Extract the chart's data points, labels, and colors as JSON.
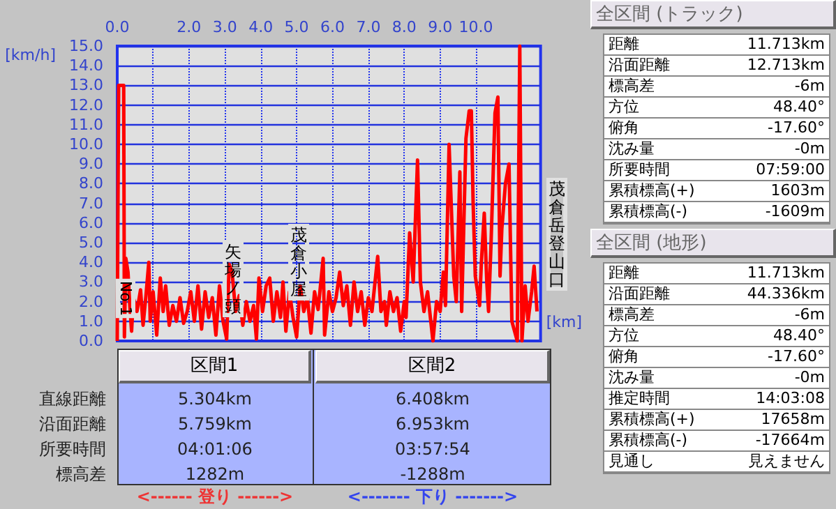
{
  "chart_data": [
    {
      "type": "line",
      "xlabel": "[km]",
      "ylabel": "[km/h]",
      "color": "#ff0000",
      "grid": true,
      "x": [
        0,
        0.02,
        0.04,
        0.18,
        0.2,
        0.24,
        0.3,
        0.35,
        0.4,
        0.45,
        0.55,
        0.65,
        0.72,
        0.8,
        0.88,
        0.92,
        1.0,
        1.1,
        1.2,
        1.28,
        1.35,
        1.45,
        1.55,
        1.65,
        1.75,
        1.85,
        1.95,
        2.05,
        2.15,
        2.25,
        2.35,
        2.45,
        2.55,
        2.65,
        2.75,
        2.85,
        2.95,
        3.05,
        3.12,
        3.2,
        3.3,
        3.4,
        3.5,
        3.6,
        3.7,
        3.8,
        3.88,
        3.95,
        4.05,
        4.15,
        4.25,
        4.35,
        4.45,
        4.55,
        4.62,
        4.7,
        4.8,
        4.9,
        5.0,
        5.1,
        5.2,
        5.3,
        5.4,
        5.5,
        5.6,
        5.74,
        5.78,
        5.9,
        6.0,
        6.1,
        6.2,
        6.3,
        6.4,
        6.5,
        6.6,
        6.7,
        6.8,
        6.9,
        7.0,
        7.1,
        7.26,
        7.35,
        7.45,
        7.5,
        7.6,
        7.7,
        7.8,
        7.9,
        8.0,
        8.05,
        8.15,
        8.25,
        8.37,
        8.45,
        8.55,
        8.65,
        8.8,
        8.9,
        9.0,
        9.09,
        9.15,
        9.25,
        9.38,
        9.45,
        9.55,
        9.6,
        9.72,
        9.81,
        9.87,
        9.92,
        9.98,
        10.1,
        10.15,
        10.23,
        10.3,
        10.35,
        10.42,
        10.48,
        10.53,
        10.61,
        10.67,
        10.72,
        10.82,
        10.92,
        11.0,
        11.15,
        11.22,
        11.28,
        11.37,
        11.45,
        11.55,
        11.62,
        11.7
      ],
      "values": [
        0,
        6.8,
        13.0,
        13.0,
        0.2,
        4.2,
        3.5,
        1.8,
        0.5,
        2.2,
        1.5,
        2.6,
        0.8,
        2.3,
        4.0,
        1.0,
        2.5,
        0.3,
        3.2,
        1.5,
        2.8,
        0.8,
        1.8,
        1.0,
        2.2,
        0.9,
        1.5,
        2.5,
        1.0,
        2.8,
        0.6,
        2.5,
        1.2,
        2.2,
        0.3,
        2.8,
        1.0,
        0.1,
        3.9,
        3.5,
        1.5,
        2.3,
        0.8,
        2.0,
        1.0,
        1.8,
        0.1,
        3.2,
        1.5,
        2.8,
        3.2,
        1.0,
        2.5,
        1.2,
        3.0,
        0.5,
        2.5,
        1.2,
        0.2,
        2.8,
        1.5,
        2.2,
        0.4,
        2.5,
        1.6,
        4.2,
        0.3,
        2.5,
        1.5,
        2.2,
        3.5,
        1.8,
        2.8,
        0.8,
        3.0,
        1.5,
        2.5,
        0.8,
        2.2,
        1.5,
        4.3,
        1.5,
        2.0,
        0.8,
        2.5,
        1.5,
        2.2,
        0.5,
        2.0,
        1.2,
        5.5,
        3.0,
        9.2,
        3.0,
        1.5,
        2.5,
        0.0,
        2.0,
        1.5,
        3.5,
        1.8,
        10.0,
        3.3,
        2.0,
        8.6,
        1.5,
        10.3,
        11.7,
        11.7,
        7.0,
        3.3,
        1.8,
        4.0,
        6.5,
        3.0,
        1.5,
        5.0,
        8.6,
        11.6,
        12.4,
        3.3,
        5.7,
        8.0,
        9.0,
        1.0,
        0.0,
        15.0,
        0.0,
        2.8,
        1.0,
        2.5,
        3.8,
        1.5
      ],
      "xlim": [
        0,
        11.8
      ],
      "xticks": [
        {
          "value": 0,
          "label": "0.0"
        },
        {
          "value": 1,
          "label": null
        },
        {
          "value": 2,
          "label": "2.0"
        },
        {
          "value": 3,
          "label": "3.0"
        },
        {
          "value": 4,
          "label": "4.0"
        },
        {
          "value": 5,
          "label": "5.0"
        },
        {
          "value": 6,
          "label": "6.0"
        },
        {
          "value": 7,
          "label": "7.0"
        },
        {
          "value": 8,
          "label": "8.0"
        },
        {
          "value": 9,
          "label": "9.0"
        },
        {
          "value": 10,
          "label": "10.0"
        }
      ],
      "ylim": [
        0,
        15
      ],
      "yticks": [
        {
          "value": 0,
          "label": "0.0"
        },
        {
          "value": 1,
          "label": "1.0"
        },
        {
          "value": 2,
          "label": "2.0"
        },
        {
          "value": 3,
          "label": "3.0"
        },
        {
          "value": 4,
          "label": "4.0"
        },
        {
          "value": 5,
          "label": "5.0"
        },
        {
          "value": 6,
          "label": "6.0"
        },
        {
          "value": 7,
          "label": "7.0"
        },
        {
          "value": 8,
          "label": "8.0"
        },
        {
          "value": 9,
          "label": "9.0"
        },
        {
          "value": 10,
          "label": "10.0"
        },
        {
          "value": 11,
          "label": "11.0"
        },
        {
          "value": 12,
          "label": "12.0"
        },
        {
          "value": 13,
          "label": "13.0"
        },
        {
          "value": 14,
          "label": "14.0"
        },
        {
          "value": 15,
          "label": "15.0"
        }
      ],
      "annotations": [
        "No.1",
        "矢場ノ頭",
        "茂倉小屋",
        "茂倉岳登山口"
      ]
    },
    {
      "type": "other",
      "annotations": [
        "区間1",
        "区間2",
        "直線距離",
        "5.304km",
        "6.408km",
        "沿面距離",
        "5.759km",
        "6.953km",
        "所要時間",
        "04:01:06",
        "03:57:54",
        "標高差",
        "1282m",
        "-1288m",
        "<------ 登り ------>",
        "<------- 下り ------->"
      ]
    },
    {
      "type": "other",
      "title": "全区間 (トラック)",
      "annotations": [
        "距離",
        "11.713km",
        "沿面距離",
        "12.713km",
        "標高差",
        "-6m",
        "方位",
        "48.40°",
        "俯角",
        "-17.60°",
        "沈み量",
        "-0m",
        "所要時間",
        "07:59:00",
        "累積標高(+)",
        "1603m",
        "累積標高(-)",
        "-1609m"
      ]
    },
    {
      "type": "other",
      "title": "全区間 (地形)",
      "annotations": [
        "距離",
        "11.713km",
        "沿面距離",
        "44.336km",
        "標高差",
        "-6m",
        "方位",
        "48.40°",
        "俯角",
        "-17.60°",
        "沈み量",
        "-0m",
        "推定時間",
        "14:03:08",
        "累積標高(+)",
        "17658m",
        "累積標高(-)",
        "-17664m",
        "見通し",
        "見えません"
      ]
    }
  ]
}
